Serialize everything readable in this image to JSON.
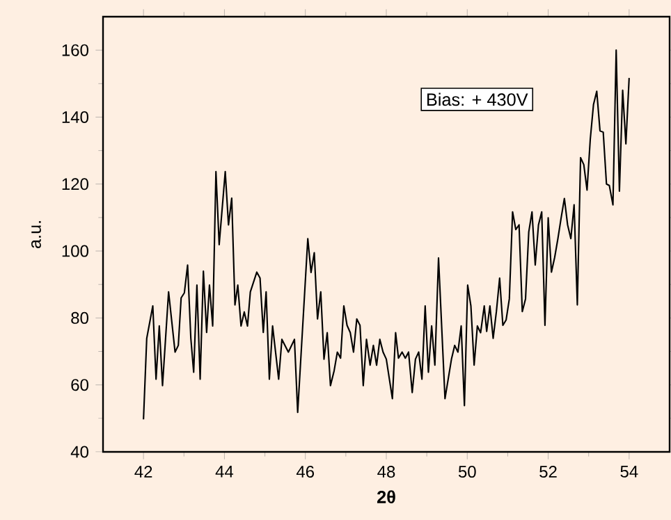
{
  "chart_data": {
    "type": "line",
    "xlabel": "2θ",
    "ylabel": "a.u.",
    "annotations": [
      "Bias: + 430V"
    ],
    "x": [
      42.0,
      42.08,
      42.23,
      42.31,
      42.39,
      42.47,
      42.62,
      42.78,
      42.86,
      42.93,
      43.01,
      43.09,
      43.17,
      43.24,
      43.32,
      43.4,
      43.48,
      43.56,
      43.63,
      43.71,
      43.79,
      43.87,
      44.02,
      44.1,
      44.18,
      44.26,
      44.33,
      44.41,
      44.49,
      44.57,
      44.64,
      44.8,
      44.88,
      44.96,
      45.03,
      45.11,
      45.19,
      45.34,
      45.42,
      45.58,
      45.73,
      45.81,
      46.06,
      46.14,
      46.22,
      46.3,
      46.38,
      46.46,
      46.54,
      46.62,
      46.71,
      46.79,
      46.87,
      46.95,
      47.03,
      47.11,
      47.19,
      47.27,
      47.35,
      47.43,
      47.51,
      47.6,
      47.68,
      47.76,
      47.84,
      47.92,
      48.0,
      48.15,
      48.23,
      48.3,
      48.39,
      48.47,
      48.55,
      48.64,
      48.72,
      48.8,
      48.88,
      48.96,
      49.04,
      49.12,
      49.2,
      49.29,
      49.45,
      49.61,
      49.69,
      49.77,
      49.85,
      49.93,
      50.01,
      50.09,
      50.17,
      50.25,
      50.33,
      50.42,
      50.48,
      50.56,
      50.64,
      50.72,
      50.8,
      50.88,
      50.96,
      51.04,
      51.12,
      51.2,
      51.28,
      51.36,
      51.44,
      51.52,
      51.6,
      51.68,
      51.76,
      51.84,
      51.92,
      52.0,
      52.08,
      52.16,
      52.24,
      52.32,
      52.4,
      52.48,
      52.56,
      52.64,
      52.72,
      52.8,
      52.88,
      52.96,
      53.04,
      53.12,
      53.2,
      53.28,
      53.36,
      53.44,
      53.51,
      53.6,
      53.68,
      53.76,
      53.84,
      53.92,
      54.0
    ],
    "series": [
      {
        "color": "#000000",
        "values": [
          49.7,
          73.9,
          83.6,
          61.7,
          77.6,
          59.8,
          87.8,
          69.8,
          71.8,
          86.0,
          87.5,
          95.8,
          73.9,
          63.8,
          89.8,
          61.7,
          94.0,
          75.7,
          89.8,
          77.6,
          123.7,
          101.9,
          123.7,
          107.8,
          115.8,
          83.9,
          89.8,
          77.6,
          81.8,
          77.6,
          87.8,
          93.7,
          91.9,
          75.7,
          87.8,
          61.7,
          77.6,
          61.7,
          73.6,
          69.8,
          73.6,
          51.8,
          103.7,
          93.6,
          99.5,
          79.7,
          87.8,
          67.7,
          75.6,
          59.8,
          64.2,
          69.8,
          68.0,
          83.6,
          77.8,
          75.6,
          69.8,
          79.7,
          77.8,
          59.8,
          73.6,
          65.9,
          71.8,
          65.9,
          73.6,
          69.8,
          67.7,
          55.9,
          75.6,
          68.0,
          69.8,
          68.0,
          69.8,
          57.7,
          67.7,
          69.8,
          61.7,
          83.6,
          63.8,
          77.6,
          65.9,
          97.9,
          55.9,
          67.7,
          71.8,
          69.8,
          77.6,
          53.8,
          89.8,
          83.6,
          65.9,
          77.6,
          75.6,
          83.6,
          76.0,
          83.6,
          73.9,
          81.9,
          91.9,
          77.8,
          79.4,
          85.7,
          111.7,
          106.4,
          107.8,
          81.9,
          85.7,
          105.7,
          111.7,
          95.8,
          107.8,
          111.7,
          77.8,
          109.9,
          93.7,
          98.1,
          103.7,
          109.9,
          115.7,
          107.8,
          103.7,
          113.8,
          83.9,
          127.9,
          125.8,
          118.2,
          133.4,
          143.8,
          147.7,
          135.9,
          135.5,
          120.0,
          119.6,
          113.8,
          160.0,
          117.9,
          148.0,
          132.0,
          151.7
        ]
      }
    ],
    "xlim": [
      41,
      55
    ],
    "ylim": [
      40,
      170
    ],
    "xticks": [
      42,
      44,
      46,
      48,
      50,
      52,
      54
    ],
    "yticks": [
      40,
      60,
      80,
      100,
      120,
      140,
      160
    ],
    "marker": "none",
    "line_style": "solid"
  }
}
